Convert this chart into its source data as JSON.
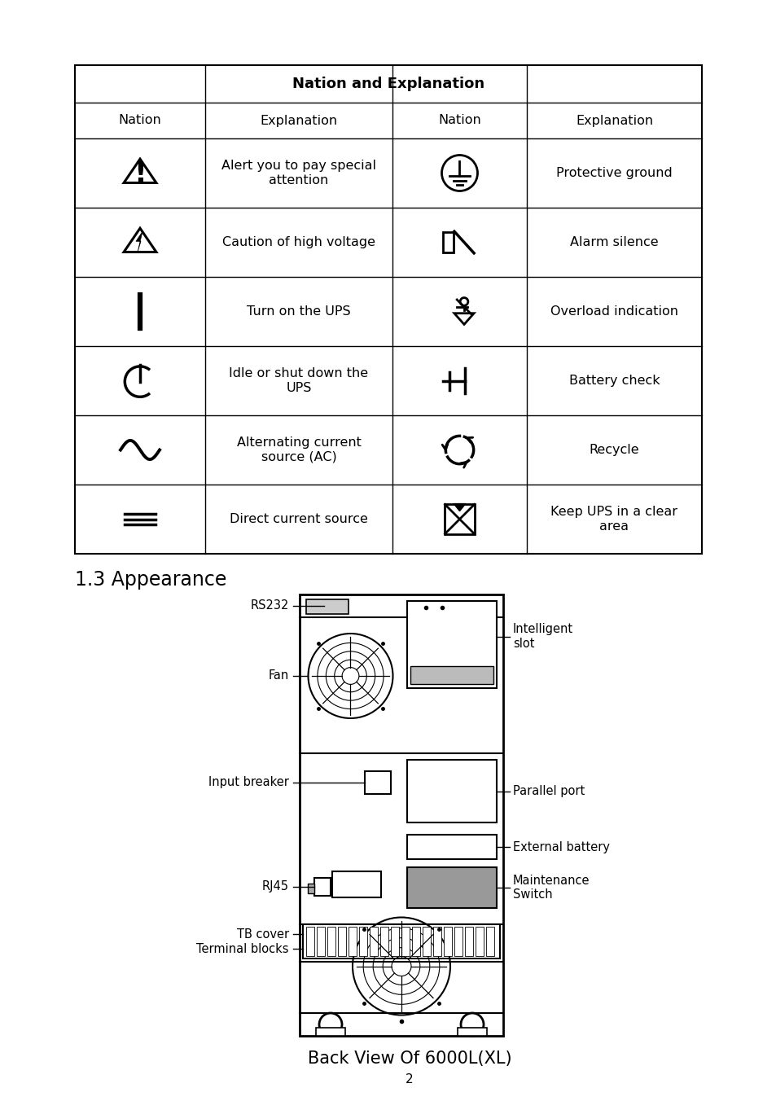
{
  "background_color": "#ffffff",
  "table_title": "Nation and Explanation",
  "col_headers": [
    "Nation",
    "Explanation",
    "Nation",
    "Explanation"
  ],
  "section_title": "1.3 Appearance",
  "caption": "Back View Of 6000L(XL)",
  "page_number": "2",
  "rows": [
    {
      "symbol_left": "warning_triangle",
      "text_left": "Alert you to pay special\nattention",
      "symbol_right": "ground",
      "text_right": "Protective ground"
    },
    {
      "symbol_left": "high_voltage",
      "text_left": "Caution of high voltage",
      "symbol_right": "alarm_silence",
      "text_right": "Alarm silence"
    },
    {
      "symbol_left": "power_on",
      "text_left": "Turn on the UPS",
      "symbol_right": "overload",
      "text_right": "Overload indication"
    },
    {
      "symbol_left": "power_off",
      "text_left": "Idle or shut down the\nUPS",
      "symbol_right": "battery_check",
      "text_right": "Battery check"
    },
    {
      "symbol_left": "ac_source",
      "text_left": "Alternating current\nsource (AC)",
      "symbol_right": "recycle",
      "text_right": "Recycle"
    },
    {
      "symbol_left": "dc_source",
      "text_left": "Direct current source",
      "symbol_right": "keep_clear",
      "text_right": "Keep UPS in a clear\narea"
    }
  ]
}
